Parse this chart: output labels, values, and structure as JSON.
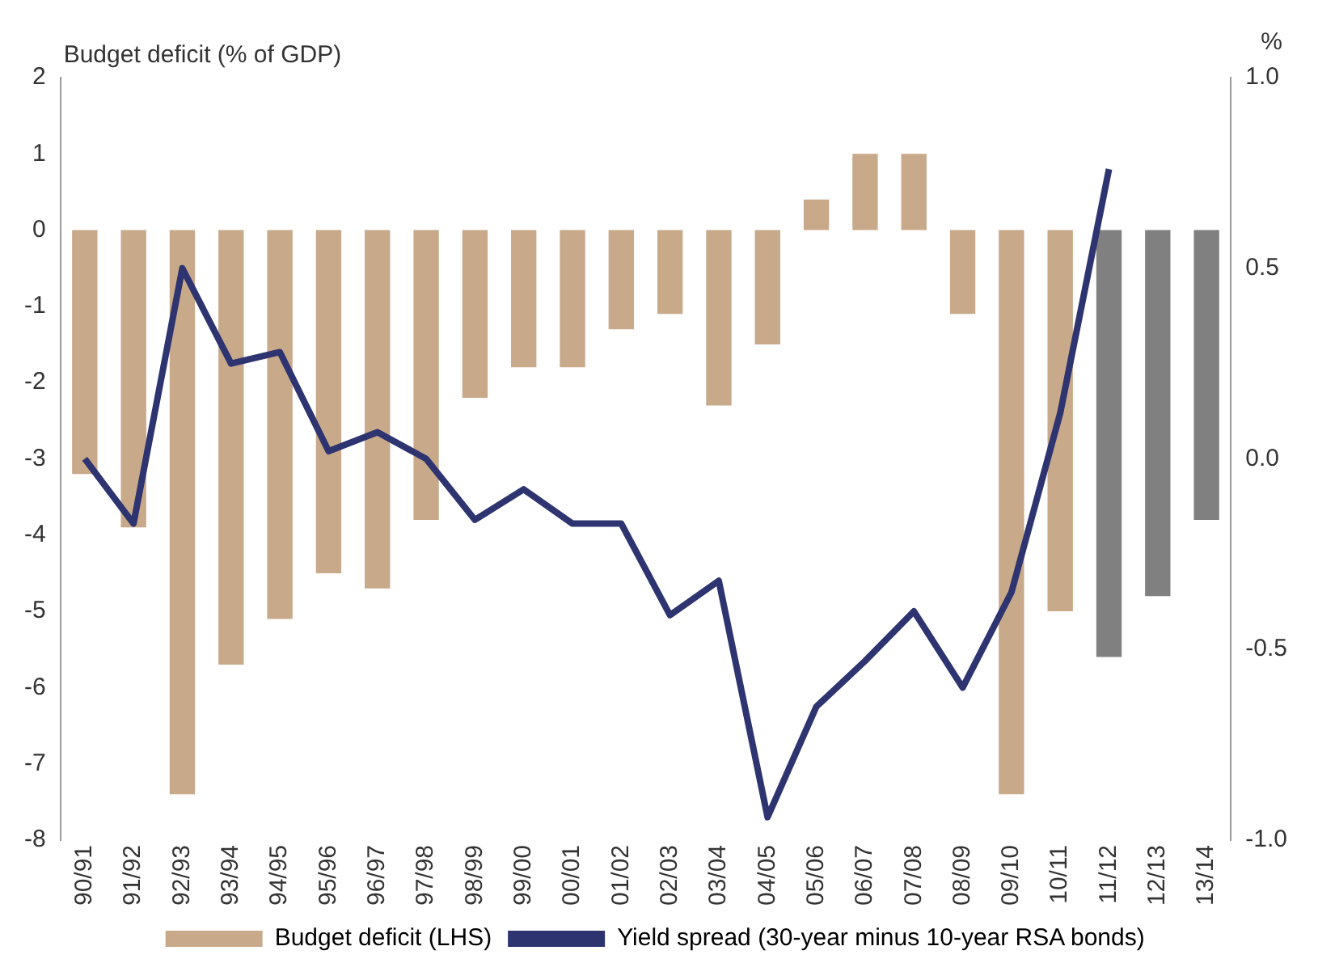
{
  "chart_data": {
    "type": "bar",
    "ylabel": "Budget deficit (% of GDP)",
    "y2label": "%",
    "categories": [
      "90/91",
      "91/92",
      "92/93",
      "93/94",
      "94/95",
      "95/96",
      "96/97",
      "97/98",
      "98/99",
      "99/00",
      "00/01",
      "01/02",
      "02/03",
      "03/04",
      "04/05",
      "05/06",
      "06/07",
      "07/08",
      "08/09",
      "09/10",
      "10/11",
      "11/12",
      "12/13",
      "13/14"
    ],
    "series": [
      {
        "name": "Budget deficit (LHS)",
        "color": "#c8a98a",
        "colors": [
          "#c8a98a",
          "#c8a98a",
          "#c8a98a",
          "#c8a98a",
          "#c8a98a",
          "#c8a98a",
          "#c8a98a",
          "#c8a98a",
          "#c8a98a",
          "#c8a98a",
          "#c8a98a",
          "#c8a98a",
          "#c8a98a",
          "#c8a98a",
          "#c8a98a",
          "#c8a98a",
          "#c8a98a",
          "#c8a98a",
          "#c8a98a",
          "#c8a98a",
          "#c8a98a",
          "#808080",
          "#808080",
          "#808080"
        ],
        "values": [
          -3.2,
          -3.9,
          -7.4,
          -5.7,
          -5.1,
          -4.5,
          -4.7,
          -3.8,
          -2.2,
          -1.8,
          -1.8,
          -1.3,
          -1.1,
          -2.3,
          -1.5,
          0.4,
          1.0,
          1.0,
          -1.1,
          -7.4,
          -5.0,
          -5.6,
          -4.8,
          -3.8
        ]
      },
      {
        "name": "Yield spread (30-year minus 10-year RSA bonds)",
        "type": "line",
        "axis": "y2",
        "color": "#2e3470",
        "values": [
          0.0,
          -0.17,
          0.5,
          0.25,
          0.28,
          0.02,
          0.07,
          0.0,
          -0.16,
          -0.08,
          -0.17,
          -0.17,
          -0.41,
          -0.32,
          -0.94,
          -0.65,
          -0.53,
          -0.4,
          -0.6,
          -0.35,
          0.12,
          0.76,
          null,
          null
        ]
      }
    ],
    "ylim": [
      -8,
      2
    ],
    "yticks": [
      -8,
      -7,
      -6,
      -5,
      -4,
      -3,
      -2,
      -1,
      0,
      1,
      2
    ],
    "y2lim": [
      -1,
      1
    ],
    "y2ticks": [
      {
        "value": -1,
        "label": "-1.0"
      },
      {
        "value": -0.5,
        "label": "-0.5"
      },
      {
        "value": 0,
        "label": "0.0"
      },
      {
        "value": 0.5,
        "label": "0.5"
      },
      {
        "value": 1,
        "label": "1.0"
      }
    ],
    "grid": false,
    "legend": "bottom",
    "marker": "none",
    "line_style": "solid"
  }
}
